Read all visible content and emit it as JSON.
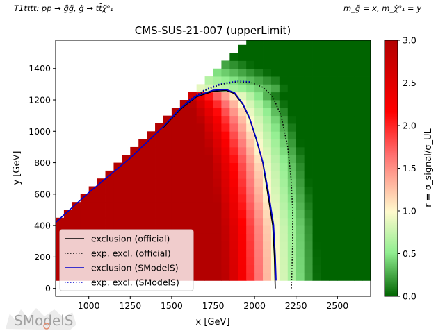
{
  "header": {
    "left_label": "T1tttt: pp → g̃g̃, g̃ → tt̄χ̃⁰₁",
    "right_label": "m_g̃ = x, m_χ̃⁰₁ = y"
  },
  "chart_data": {
    "type": "heatmap",
    "title": "CMS-SUS-21-007 (upperLimit)",
    "xlabel": "x [GeV]",
    "ylabel": "y [GeV]",
    "xlim": [
      800,
      2700
    ],
    "ylim": [
      -50,
      1580
    ],
    "xticks": [
      1000,
      1250,
      1500,
      1750,
      2000,
      2250,
      2500
    ],
    "yticks": [
      0,
      200,
      400,
      600,
      800,
      1000,
      1200,
      1400
    ],
    "grid": false,
    "colorbar": {
      "label": "r = σ_signal/σ_UL",
      "range": [
        0,
        3
      ],
      "ticks": [
        "0.0",
        "0.5",
        "1.0",
        "1.5",
        "2.0",
        "2.5",
        "3.0"
      ],
      "colors": [
        "#006400",
        "#90ee90",
        "#fffacd",
        "#ff0000",
        "#b30000"
      ]
    },
    "heatmap_model": {
      "x_bin_width": 50,
      "y_bin_width": 50,
      "y_min": 50,
      "diagonal_boundary": "y ≈ x − 425 for x ≤ 1950; y ≤ 1575 above",
      "value_levels": [
        3.0,
        2.0,
        1.0,
        0.5,
        0.15
      ]
    },
    "series": [
      {
        "name": "exclusion (official)",
        "style": "solid",
        "color": "#000000",
        "points": [
          [
            1450,
            1025
          ],
          [
            1550,
            1140
          ],
          [
            1650,
            1220
          ],
          [
            1750,
            1255
          ],
          [
            1830,
            1260
          ],
          [
            1880,
            1240
          ],
          [
            1930,
            1170
          ],
          [
            1970,
            1080
          ],
          [
            2010,
            950
          ],
          [
            2050,
            800
          ],
          [
            2080,
            600
          ],
          [
            2110,
            400
          ],
          [
            2120,
            200
          ],
          [
            2125,
            0
          ]
        ]
      },
      {
        "name": "exp. excl. (official)",
        "style": "dotted",
        "color": "#000000",
        "points": [
          [
            1500,
            1080
          ],
          [
            1600,
            1190
          ],
          [
            1700,
            1260
          ],
          [
            1800,
            1300
          ],
          [
            1900,
            1315
          ],
          [
            1980,
            1310
          ],
          [
            2050,
            1280
          ],
          [
            2110,
            1220
          ],
          [
            2160,
            1100
          ],
          [
            2200,
            900
          ],
          [
            2220,
            700
          ],
          [
            2230,
            500
          ],
          [
            2230,
            300
          ],
          [
            2225,
            100
          ],
          [
            2222,
            0
          ]
        ]
      },
      {
        "name": "exclusion (SModelS)",
        "style": "solid",
        "color": "#0000cc",
        "points": [
          [
            800,
            420
          ],
          [
            1000,
            610
          ],
          [
            1250,
            830
          ],
          [
            1450,
            1030
          ],
          [
            1550,
            1145
          ],
          [
            1650,
            1225
          ],
          [
            1750,
            1262
          ],
          [
            1830,
            1266
          ],
          [
            1880,
            1245
          ],
          [
            1930,
            1175
          ],
          [
            1970,
            1085
          ],
          [
            2010,
            955
          ],
          [
            2050,
            805
          ],
          [
            2085,
            605
          ],
          [
            2115,
            405
          ],
          [
            2125,
            205
          ],
          [
            2130,
            50
          ]
        ]
      },
      {
        "name": "exp. excl. (SModelS)",
        "style": "dotted",
        "color": "#0000cc",
        "points": [
          [
            1500,
            1085
          ],
          [
            1600,
            1195
          ],
          [
            1700,
            1265
          ],
          [
            1800,
            1305
          ],
          [
            1900,
            1320
          ],
          [
            1980,
            1315
          ]
        ]
      }
    ],
    "legend_placement": "lower-left",
    "watermark": "SModelS"
  }
}
